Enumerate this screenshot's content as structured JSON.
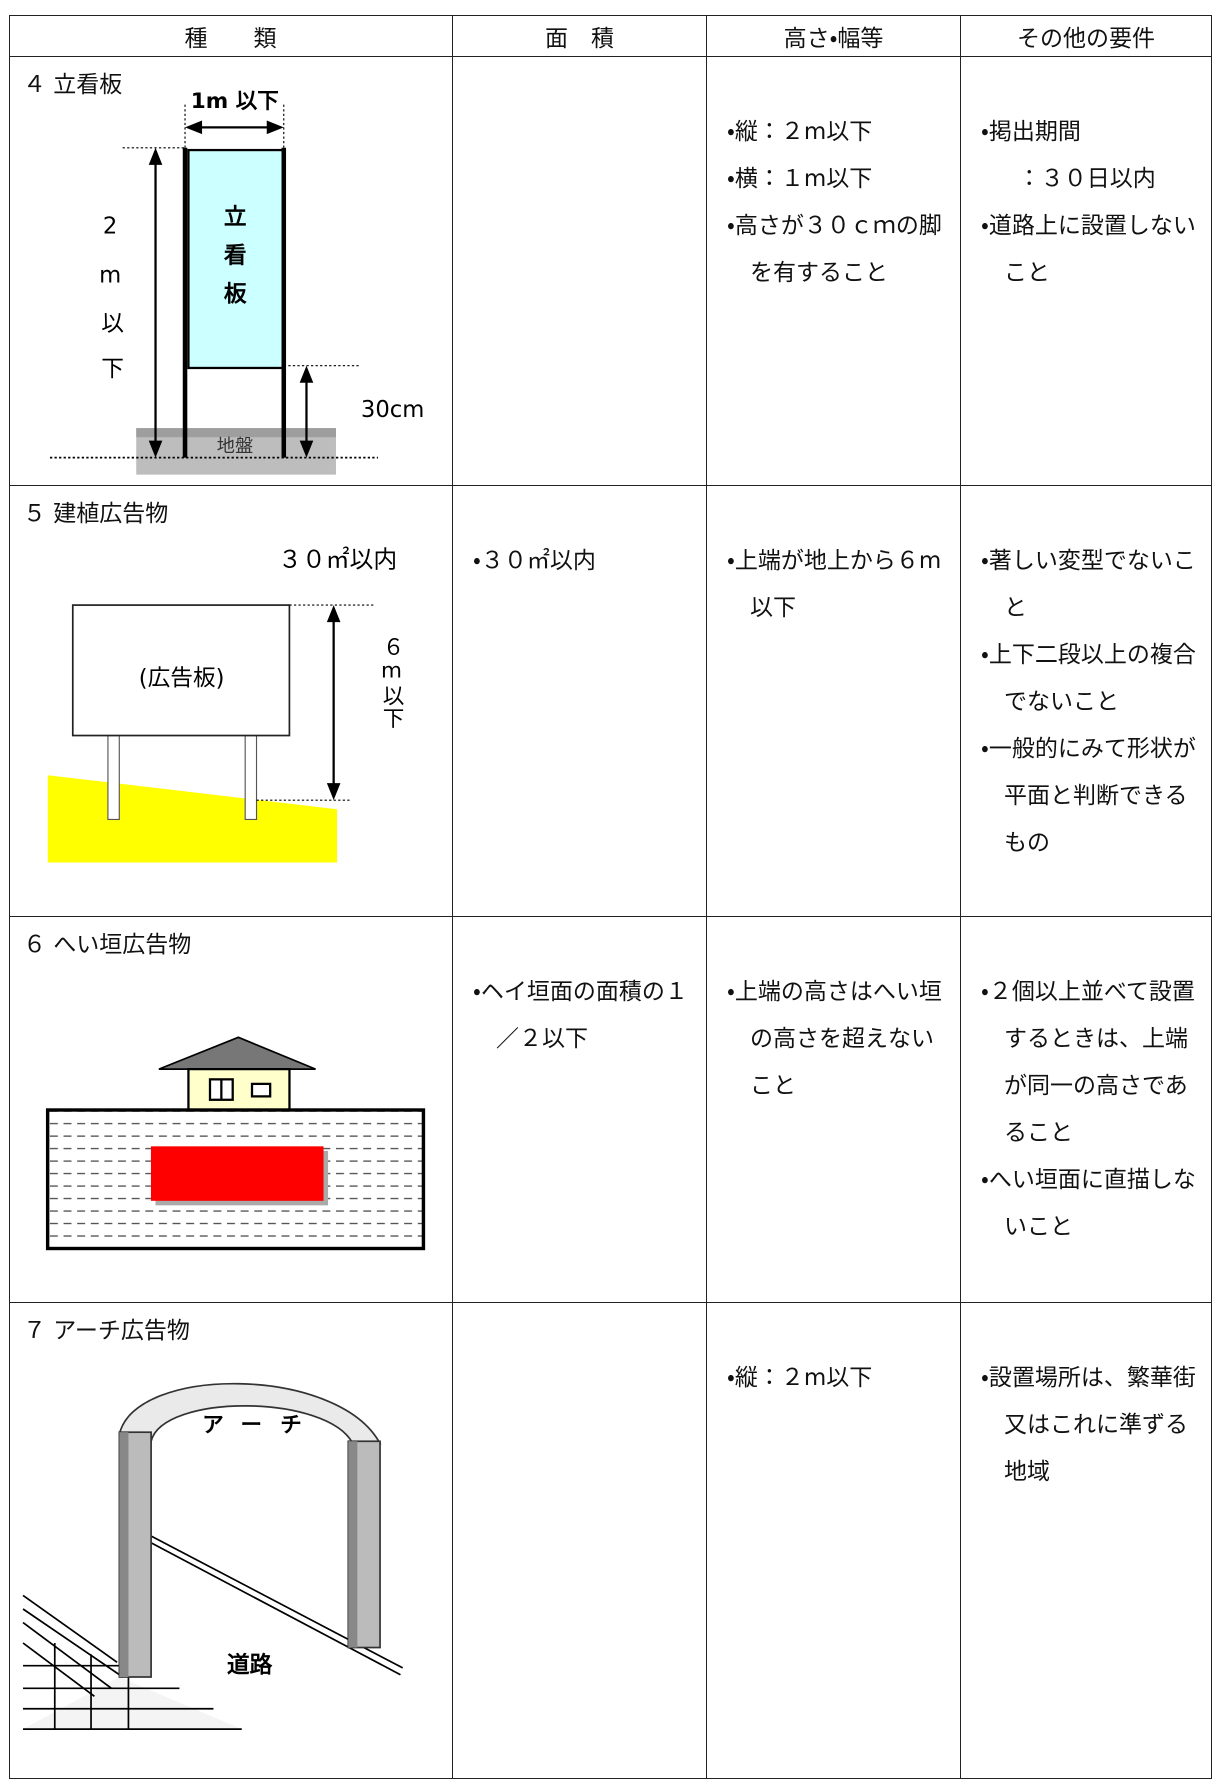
{
  "table": {
    "header": [
      "種　　類",
      "面　積",
      "高さ・幅等",
      "その他の要件"
    ],
    "rows": [
      {
        "kind": "４ 立看板",
        "size": [
          "・縦：２m以下",
          "・横：１m以下",
          "・高さが３０ｃｍの脚を有すること"
        ],
        "other": [
          "・掲出期間",
          "：３０日以内",
          "・道路上に設置しないこと"
        ],
        "figure": {
          "width_label": "1m 以下",
          "height_label": "2m以下",
          "board": "立看板",
          "leg_label": "30cm",
          "ground": "地盤"
        }
      },
      {
        "kind": "５ 建植広告物",
        "area": [
          "・３０㎡以内"
        ],
        "size": [
          "・上端が地上から６m以下"
        ],
        "other": [
          "・著しい変型でないこと",
          "・上下二段以上の複合でないこと",
          "・一般的にみて形状が平面と判断できるもの"
        ],
        "figure": {
          "area_label": "３０㎡以内",
          "board": "(広告板)",
          "height_label": "６m以下"
        }
      },
      {
        "kind": "６ へい垣広告物",
        "area": [
          "・ヘイ垣面の面積の１／２以下"
        ],
        "size": [
          "・上端の高さはへい垣の高さを超えないこと"
        ],
        "other": [
          "・２個以上並べて設置するときは、上端が同一の高さであること",
          "・へい垣面に直描しないこと"
        ]
      },
      {
        "kind": "７ アーチ広告物",
        "size": [
          "・縦：２m以下"
        ],
        "other": [
          "・設置場所は、繁華街又はこれに準ずる地域"
        ],
        "figure": {
          "arch": "アーチ",
          "road": "道路"
        }
      }
    ]
  }
}
